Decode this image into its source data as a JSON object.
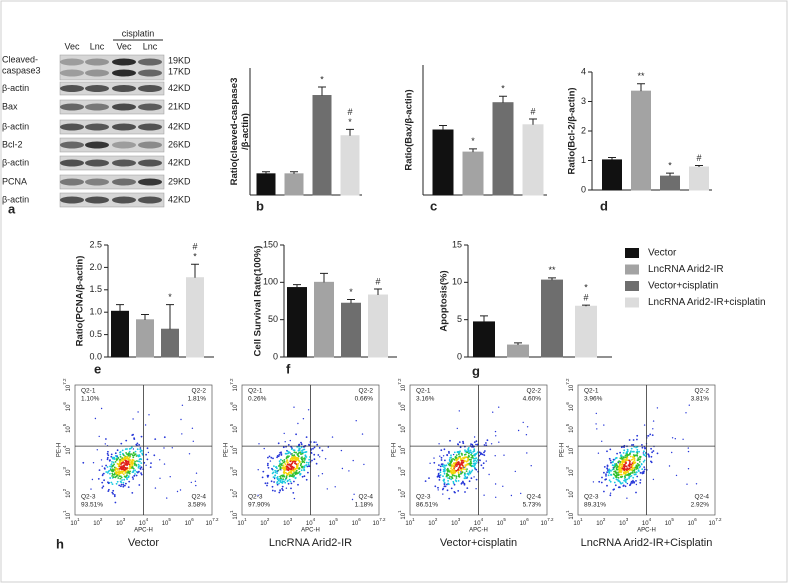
{
  "blot": {
    "panel": "a",
    "treatment": "cisplatin",
    "lanes": [
      "Vec",
      "Lnc",
      "Vec",
      "Lnc"
    ],
    "rows": [
      {
        "label": [
          "Cleaved-",
          "caspase3"
        ],
        "sizes": [
          "19KD",
          "17KD"
        ]
      },
      {
        "label": [
          "β-actin"
        ],
        "sizes": [
          "42KD"
        ]
      },
      {
        "label": [
          "Bax"
        ],
        "sizes": [
          "21KD"
        ]
      },
      {
        "label": [
          "β-actin"
        ],
        "sizes": [
          "42KD"
        ]
      },
      {
        "label": [
          "Bcl-2"
        ],
        "sizes": [
          "26KD"
        ]
      },
      {
        "label": [
          "β-actin"
        ],
        "sizes": [
          "42KD"
        ]
      },
      {
        "label": [
          "PCNA"
        ],
        "sizes": [
          "29KD"
        ]
      },
      {
        "label": [
          "β-actin"
        ],
        "sizes": [
          "42KD"
        ]
      }
    ]
  },
  "chart_data": [
    {
      "type": "bar",
      "panel": "b",
      "ylabel": [
        "Ratio(cleaved-caspase3",
        "/β-actin)"
      ],
      "ylim": [
        0,
        6
      ],
      "values": [
        1.0,
        1.0,
        4.7,
        2.8
      ],
      "errors": [
        0.1,
        0.1,
        0.4,
        0.3
      ],
      "colors": [
        "#111111",
        "#a3a3a3",
        "#6e6e6e",
        "#dcdcdc"
      ],
      "annotations": [
        [],
        [],
        [
          "*"
        ],
        [
          "#",
          "*"
        ]
      ]
    },
    {
      "type": "bar",
      "panel": "c",
      "ylabel": [
        "Ratio(Bax/β-actin)"
      ],
      "ylim": [
        0,
        2
      ],
      "values": [
        1.0,
        0.66,
        1.42,
        1.08
      ],
      "errors": [
        0.07,
        0.05,
        0.1,
        0.09
      ],
      "colors": [
        "#111111",
        "#a3a3a3",
        "#6e6e6e",
        "#dcdcdc"
      ],
      "annotations": [
        [],
        [
          "*"
        ],
        [
          "*"
        ],
        [
          "#"
        ]
      ]
    },
    {
      "type": "bar",
      "panel": "d",
      "ylabel": [
        "Ratio(Bcl-2/β-actin)"
      ],
      "ylim": [
        0,
        4
      ],
      "yticks": [
        0,
        1,
        2,
        3,
        4
      ],
      "values": [
        1.02,
        3.35,
        0.47,
        0.78
      ],
      "errors": [
        0.08,
        0.25,
        0.1,
        0.05
      ],
      "colors": [
        "#111111",
        "#a3a3a3",
        "#6e6e6e",
        "#dcdcdc"
      ],
      "annotations": [
        [],
        [
          "**"
        ],
        [
          "*"
        ],
        [
          "#"
        ]
      ]
    },
    {
      "type": "bar",
      "panel": "e",
      "ylabel": [
        "Ratio(PCNA/β-actin)"
      ],
      "ylim": [
        0,
        2.5
      ],
      "yticks": [
        {
          "value": 0,
          "label": "0.0"
        },
        0.5,
        {
          "value": 1,
          "label": "1.0"
        },
        1.5,
        {
          "value": 2,
          "label": "2.0"
        },
        2.5
      ],
      "values": [
        1.02,
        0.83,
        0.62,
        1.77
      ],
      "errors": [
        0.15,
        0.12,
        0.55,
        0.3
      ],
      "colors": [
        "#111111",
        "#a3a3a3",
        "#6e6e6e",
        "#dcdcdc"
      ],
      "annotations": [
        [],
        [],
        [
          "*"
        ],
        [
          "#",
          "*"
        ]
      ]
    },
    {
      "type": "bar",
      "panel": "f",
      "ylabel": [
        "Cell Survival Rate(100%)"
      ],
      "ylim": [
        0,
        150
      ],
      "yticks": [
        0,
        50,
        100,
        150
      ],
      "values": [
        93,
        100,
        72,
        83
      ],
      "errors": [
        4,
        12,
        5,
        8
      ],
      "colors": [
        "#111111",
        "#a3a3a3",
        "#6e6e6e",
        "#dcdcdc"
      ],
      "annotations": [
        [],
        [],
        [
          "*"
        ],
        [
          "#"
        ]
      ]
    },
    {
      "type": "bar",
      "panel": "g",
      "ylabel": [
        "Apoptosis(%)"
      ],
      "ylim": [
        0,
        15
      ],
      "yticks": [
        0,
        5,
        10,
        15
      ],
      "values": [
        4.7,
        1.6,
        10.3,
        6.8
      ],
      "errors": [
        0.8,
        0.3,
        0.3,
        0.15
      ],
      "colors": [
        "#111111",
        "#a3a3a3",
        "#6e6e6e",
        "#dcdcdc"
      ],
      "annotations": [
        [],
        [],
        [
          "**"
        ],
        [
          "*",
          "#"
        ]
      ],
      "categories": [
        "Vector",
        "LncRNA Arid2-IR",
        "Vector+cisplatin",
        "LncRNA Arid2-IR+cisplatin"
      ],
      "legend": "right"
    }
  ],
  "flow": {
    "panel": "h",
    "x_axis": "APC-H",
    "y_axis": "PE-H",
    "tick_base": "10",
    "tick_exponents": [
      "1",
      "2",
      "3",
      "4",
      "5",
      "6",
      "7.2"
    ],
    "plots": [
      {
        "title": "Vector",
        "quadrants": [
          [
            "Q2-1",
            "1.10%"
          ],
          [
            "Q2-2",
            "1.81%"
          ],
          [
            "Q2-3",
            "93.51%"
          ],
          [
            "Q2-4",
            "3.58%"
          ]
        ]
      },
      {
        "title": "LncRNA Arid2-IR",
        "quadrants": [
          [
            "Q2-1",
            "0.26%"
          ],
          [
            "Q2-2",
            "0.66%"
          ],
          [
            "Q2-3",
            "97.90%"
          ],
          [
            "Q2-4",
            "1.18%"
          ]
        ]
      },
      {
        "title": "Vector+cisplatin",
        "quadrants": [
          [
            "Q2-1",
            "3.16%"
          ],
          [
            "Q2-2",
            "4.60%"
          ],
          [
            "Q2-3",
            "86.51%"
          ],
          [
            "Q2-4",
            "5.73%"
          ]
        ]
      },
      {
        "title": "LncRNA Arid2-IR+Cisplatin",
        "quadrants": [
          [
            "Q2-1",
            "3.96%"
          ],
          [
            "Q2-2",
            "3.81%"
          ],
          [
            "Q2-3",
            "89.31%"
          ],
          [
            "Q2-4",
            "2.92%"
          ]
        ]
      }
    ]
  }
}
